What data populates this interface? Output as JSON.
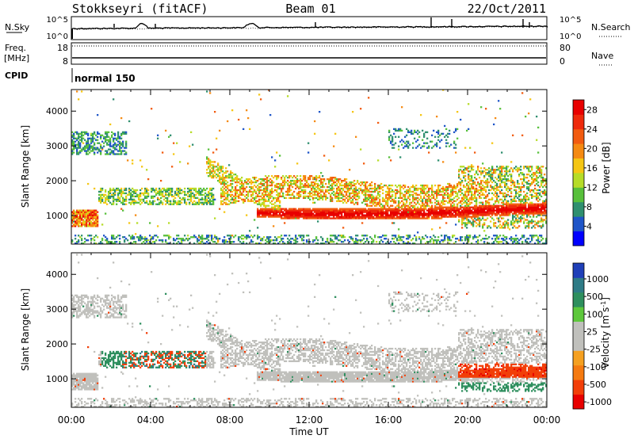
{
  "header": {
    "station": "Stokkseyri (fitACF)",
    "beam": "Beam 01",
    "date": "22/Oct/2011"
  },
  "top_panels": {
    "nsky": {
      "label": "N.Sky",
      "right_label": "N.Search",
      "ticks_left": [
        "10^5",
        "10^0"
      ],
      "ticks_right": [
        "10^5",
        "10^0"
      ]
    },
    "freq": {
      "label_line1": "Freq.",
      "label_line2": "[MHz]",
      "right_label": "Nave",
      "ticks_left": [
        "18",
        "8"
      ],
      "ticks_right": [
        "80",
        "0"
      ]
    },
    "cpid": {
      "label": "CPID",
      "value": "normal 150"
    }
  },
  "chart_data": [
    {
      "type": "heatmap",
      "title": "",
      "xlabel": "",
      "ylabel": "Slant Range [km]",
      "x_ticks": [
        "00:00",
        "04:00",
        "08:00",
        "12:00",
        "16:00",
        "20:00",
        "00:00"
      ],
      "xlim_hours": [
        0,
        24
      ],
      "y_ticks": [
        1000,
        2000,
        3000,
        4000
      ],
      "ylim_km": [
        180,
        4620
      ],
      "colorbar": {
        "label": "Power [dB]",
        "ticks": [
          "4",
          "8",
          "12",
          "16",
          "20",
          "24",
          "28"
        ],
        "range": [
          0,
          30
        ],
        "colors": [
          "#0000ff",
          "#1f55c8",
          "#2f8f6f",
          "#58c03b",
          "#b6dc28",
          "#f5c614",
          "#f58a12",
          "#f25b10",
          "#ee2a0c",
          "#e80000"
        ]
      }
    },
    {
      "type": "heatmap",
      "title": "",
      "xlabel": "Time UT",
      "ylabel": "Slant Range [km]",
      "x_ticks": [
        "00:00",
        "04:00",
        "08:00",
        "12:00",
        "16:00",
        "20:00",
        "00:00"
      ],
      "xlim_hours": [
        0,
        24
      ],
      "y_ticks": [
        1000,
        2000,
        3000,
        4000
      ],
      "ylim_km": [
        180,
        4620
      ],
      "colorbar": {
        "label": "Velocity [m s^-1]",
        "ticks": [
          "1000",
          "500",
          "100",
          "25",
          "-25",
          "-100",
          "-500",
          "-1000"
        ],
        "colors": [
          "#1f3fb8",
          "#2e7b86",
          "#2e8f5e",
          "#5ec83c",
          "#c0c0bc",
          "#c0c0bc",
          "#f5a020",
          "#f57a10",
          "#f23e08",
          "#e80000"
        ]
      }
    }
  ]
}
